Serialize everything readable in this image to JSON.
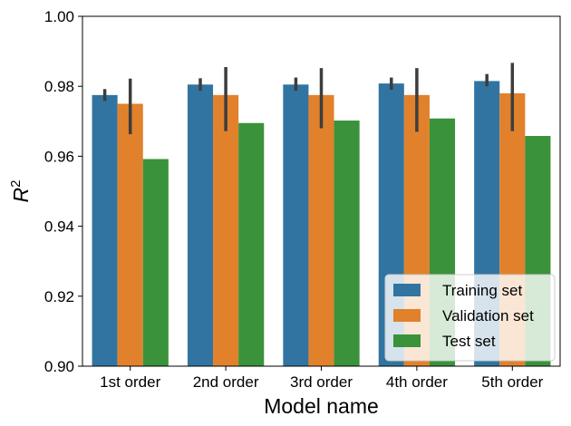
{
  "chart_data": {
    "type": "bar",
    "xlabel": "Model name",
    "ylabel_base": "R",
    "ylabel_sup": "2",
    "ylim": [
      0.9,
      1.0
    ],
    "yticks": [
      "0.90",
      "0.92",
      "0.94",
      "0.96",
      "0.98",
      "1.00"
    ],
    "ytick_values": [
      0.9,
      0.92,
      0.94,
      0.96,
      0.98,
      1.0
    ],
    "categories": [
      "1st order",
      "2nd order",
      "3rd order",
      "4th order",
      "5th order"
    ],
    "legend_position": "lower-right",
    "series": [
      {
        "name": "Training set",
        "color": "#3274a1",
        "values": [
          0.9775,
          0.9805,
          0.9805,
          0.9808,
          0.9815
        ],
        "err_low": [
          0.9758,
          0.9787,
          0.9787,
          0.979,
          0.98
        ],
        "err_high": [
          0.9792,
          0.9823,
          0.9825,
          0.9825,
          0.9835
        ]
      },
      {
        "name": "Validation set",
        "color": "#e1812c",
        "values": [
          0.975,
          0.9775,
          0.9775,
          0.9775,
          0.978
        ],
        "err_low": [
          0.9663,
          0.9672,
          0.968,
          0.967,
          0.9672
        ],
        "err_high": [
          0.9822,
          0.9855,
          0.9852,
          0.9852,
          0.9867
        ]
      },
      {
        "name": "Test set",
        "color": "#3a923a",
        "values": [
          0.9592,
          0.9695,
          0.9702,
          0.9708,
          0.9658
        ]
      }
    ]
  }
}
